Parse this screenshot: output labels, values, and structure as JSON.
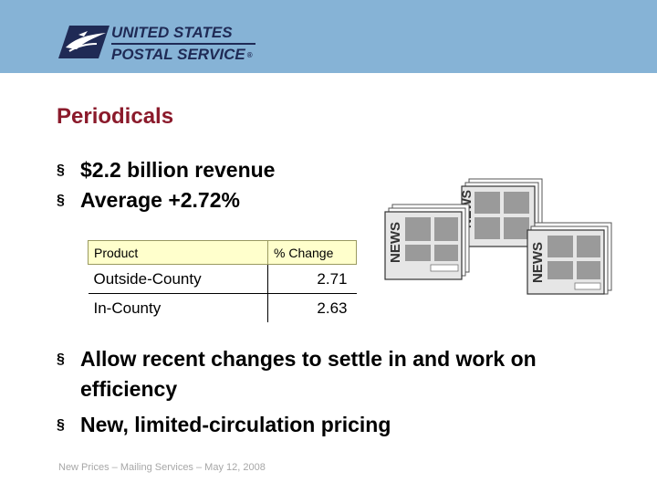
{
  "header": {
    "logo": {
      "line1": "UNITED STATES",
      "line2": "POSTAL SERVICE",
      "reg_mark": "®",
      "icon": "eagle-logo-icon"
    },
    "bg_color": "#86b3d6"
  },
  "slide": {
    "title": "Periodicals",
    "title_color": "#8b1a2b",
    "bullets_top": [
      "$2.2 billion revenue",
      "Average +2.72%"
    ],
    "bullet_mark": "§",
    "table": {
      "headers": [
        "Product",
        "% Change"
      ],
      "rows": [
        {
          "product": "Outside-County",
          "change": "2.71"
        },
        {
          "product": "In-County",
          "change": "2.63"
        }
      ],
      "header_bg": "#ffffcc"
    },
    "illustration": {
      "icon": "newspaper-stack-icon",
      "text": "NEWS"
    },
    "bullets_bottom": [
      "Allow recent changes to settle in and work on efficiency",
      "New, limited-circulation pricing"
    ]
  },
  "footer": {
    "text": "New Prices – Mailing Services – May 12, 2008"
  }
}
